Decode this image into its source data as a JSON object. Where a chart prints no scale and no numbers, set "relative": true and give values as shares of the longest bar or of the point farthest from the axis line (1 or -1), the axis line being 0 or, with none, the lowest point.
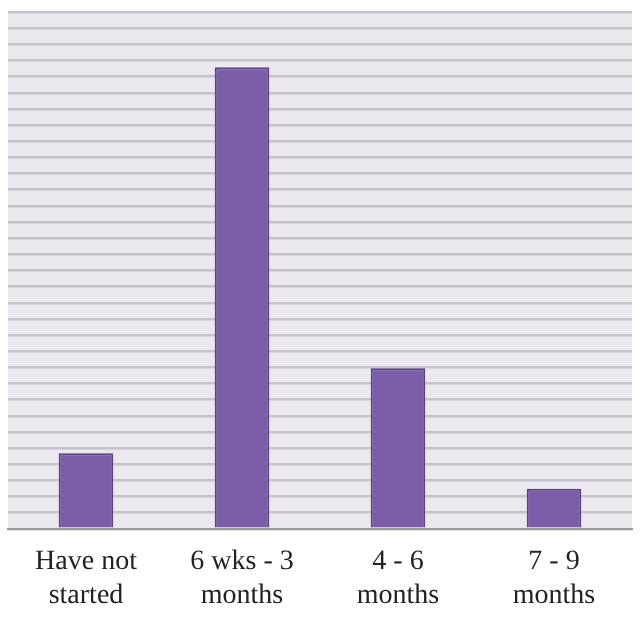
{
  "chart_data": {
    "type": "bar",
    "relative": true,
    "categories": [
      "Have not started",
      "6 wks - 3 months",
      "4 - 6 months",
      "7 - 9 months"
    ],
    "values": [
      0.164,
      1,
      0.348,
      0.087
    ],
    "color": "#7b5ea7",
    "grid": "y",
    "legend": false
  }
}
